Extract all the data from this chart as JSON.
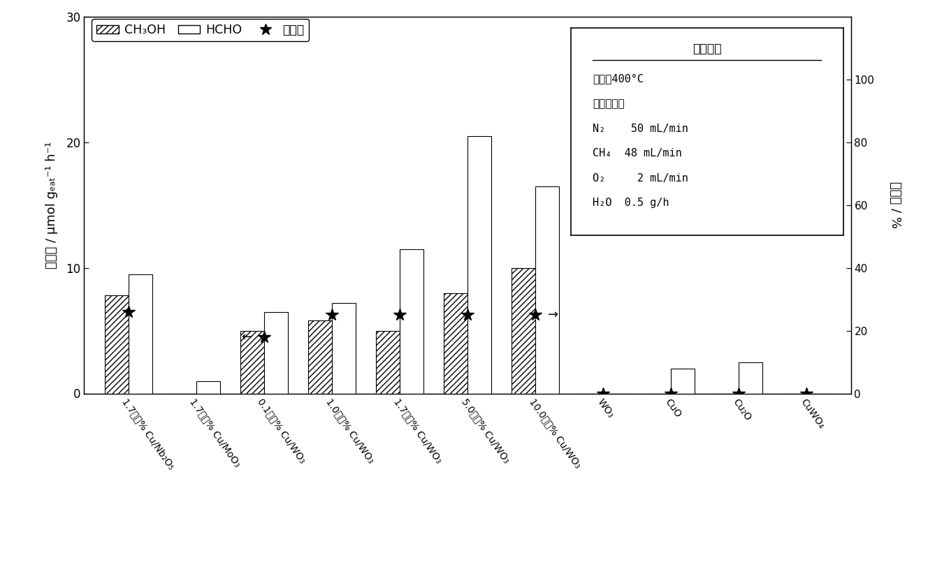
{
  "categories": [
    "1.7質量% Cu/Nb₂O₅",
    "1.7質量% Cu/MoO₃",
    "0.1質量% Cu/WO₃",
    "1.0質量% Cu/WO₃",
    "1.7質量% Cu/WO₃",
    "5.0質量% Cu/WO₃",
    "10.0質量% Cu/WO₃",
    "WO₃",
    "CuO",
    "Cu₂O",
    "CuWO₄"
  ],
  "ch3oh_values": [
    7.8,
    0.0,
    5.0,
    5.8,
    5.0,
    8.0,
    10.0,
    0.0,
    0.0,
    0.0,
    0.0
  ],
  "hcho_values": [
    9.5,
    1.0,
    6.5,
    7.2,
    11.5,
    20.5,
    16.5,
    0.0,
    2.0,
    2.5,
    0.0
  ],
  "selectivity": [
    26,
    null,
    18,
    25,
    25,
    25,
    25,
    0,
    0,
    0,
    0
  ],
  "has_arrow": [
    false,
    false,
    false,
    false,
    false,
    false,
    true,
    false,
    false,
    false,
    false
  ],
  "has_left_arrow": [
    false,
    false,
    true,
    false,
    false,
    false,
    false,
    false,
    false,
    false,
    false
  ],
  "ylim_left": [
    0,
    30
  ],
  "ylim_right": [
    0,
    120
  ],
  "yticks_left": [
    0,
    10,
    20,
    30
  ],
  "yticks_right": [
    0,
    20,
    40,
    60,
    80,
    100
  ],
  "bar_width": 0.35,
  "ylabel_left": "生成量 / μmol gₑₐₜ⁻¹ h⁻¹",
  "ylabel_right": "選択率 / %",
  "legend_labels": [
    "CH₃OH",
    "HCHO",
    "選択率"
  ],
  "cond_title": "反応条件",
  "cond_line1": "温度：400°C",
  "cond_line2": "反応ガス：",
  "cond_line3": "N₂    50 mL/min",
  "cond_line4": "CH₄  48 mL/min",
  "cond_line5": "O₂     2 mL/min",
  "cond_line6": "H₂O  0.5 g/h"
}
